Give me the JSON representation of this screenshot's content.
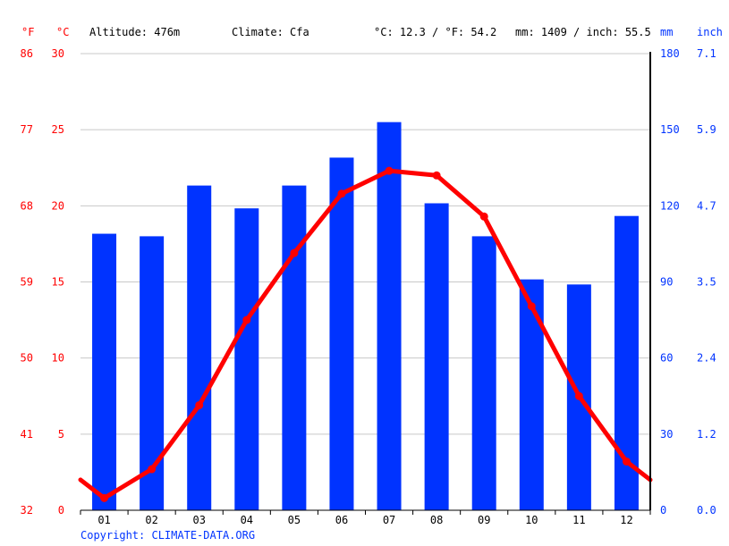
{
  "header": {
    "f_unit": "°F",
    "c_unit": "°C",
    "altitude": "Altitude: 476m",
    "climate": "Climate: Cfa",
    "temp_avg": "°C: 12.3 / °F: 54.2",
    "precip_total": "mm: 1409 / inch: 55.5",
    "mm_unit": "mm",
    "inch_unit": "inch"
  },
  "footer": {
    "copyright": "Copyright: CLIMATE-DATA.ORG"
  },
  "colors": {
    "precipitation": "#0033ff",
    "temperature": "#ff0000",
    "axis_temp": "#ff0000",
    "axis_precip": "#0033ff",
    "grid": "#c8c8c8"
  },
  "chart_data": {
    "type": "bar+line",
    "categories": [
      "01",
      "02",
      "03",
      "04",
      "05",
      "06",
      "07",
      "08",
      "09",
      "10",
      "11",
      "12"
    ],
    "series": [
      {
        "type": "bar",
        "axis": "right",
        "values": [
          109,
          108,
          128,
          119,
          128,
          139,
          153,
          121,
          108,
          91,
          89,
          116
        ]
      },
      {
        "type": "line",
        "axis": "left",
        "values": [
          0.8,
          2.7,
          6.9,
          12.5,
          16.9,
          20.8,
          22.3,
          22.0,
          19.3,
          13.4,
          7.5,
          3.2
        ],
        "start_value": 2.0,
        "end_value": 2.0
      }
    ],
    "ylim_left_c": [
      0,
      30
    ],
    "yticks_left_c": [
      "0",
      "5",
      "10",
      "15",
      "20",
      "25",
      "30"
    ],
    "yticks_left_f": [
      "32",
      "41",
      "50",
      "59",
      "68",
      "77",
      "86"
    ],
    "ylim_right_mm": [
      0,
      180
    ],
    "yticks_right_mm": [
      "0",
      "30",
      "60",
      "90",
      "120",
      "150",
      "180"
    ],
    "yticks_right_inch": [
      "0.0",
      "1.2",
      "2.4",
      "3.5",
      "4.7",
      "5.9",
      "7.1"
    ],
    "grid": true
  }
}
